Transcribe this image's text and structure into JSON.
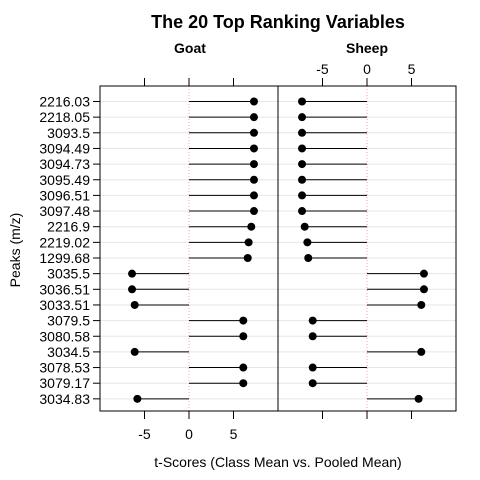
{
  "chart_data": {
    "type": "dot",
    "title": "The 20 Top Ranking Variables",
    "xlabel": "t-Scores (Class Mean vs. Pooled Mean)",
    "ylabel": "Peaks (m/z)",
    "xlim": [
      -10,
      10
    ],
    "xticks": [
      "-5",
      "0",
      "5"
    ],
    "xtick_values": [
      -5,
      0,
      5
    ],
    "grid": true,
    "categories": [
      "2216.03",
      "2218.05",
      "3093.5",
      "3094.49",
      "3094.73",
      "3095.49",
      "3096.51",
      "3097.48",
      "2216.9",
      "2219.02",
      "1299.68",
      "3035.5",
      "3036.51",
      "3033.51",
      "3079.5",
      "3080.58",
      "3034.5",
      "3078.53",
      "3079.17",
      "3034.83"
    ],
    "series": [
      {
        "name": "Goat",
        "values": [
          7.3,
          7.3,
          7.3,
          7.3,
          7.3,
          7.3,
          7.3,
          7.3,
          7.0,
          6.7,
          6.6,
          -6.4,
          -6.4,
          -6.1,
          6.1,
          6.1,
          -6.1,
          6.1,
          6.1,
          -5.8
        ]
      },
      {
        "name": "Sheep",
        "values": [
          -7.3,
          -7.3,
          -7.3,
          -7.3,
          -7.3,
          -7.3,
          -7.3,
          -7.3,
          -7.0,
          -6.7,
          -6.6,
          6.4,
          6.4,
          6.1,
          -6.1,
          -6.1,
          6.1,
          -6.1,
          -6.1,
          5.8
        ]
      }
    ],
    "colors": {
      "dot": "#000000",
      "stem": "#000000",
      "grid": "#e6e6e6",
      "zero": "#ff9fb0"
    }
  }
}
